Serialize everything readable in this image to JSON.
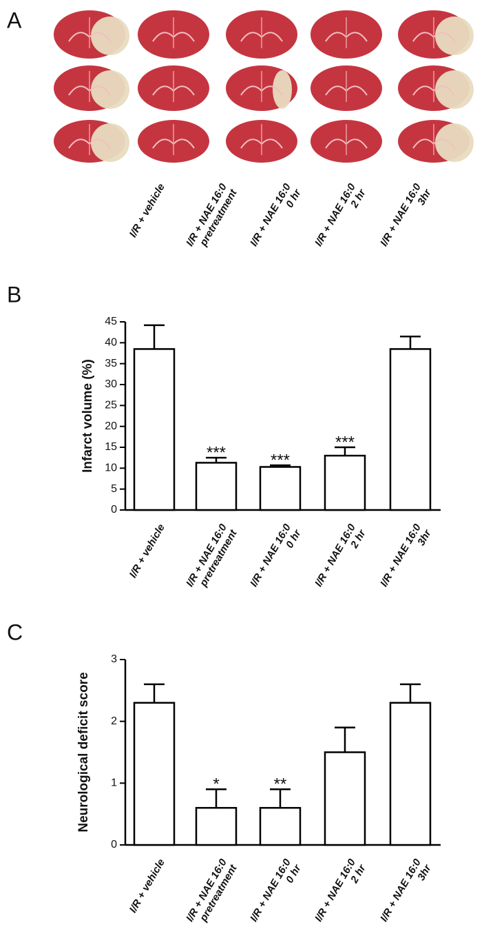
{
  "panel_a": {
    "label": "A",
    "categories": [
      [
        "I/R + vehicle"
      ],
      [
        "I/R + NAE 16:0",
        "pretreatment"
      ],
      [
        "I/R + NAE 16:0",
        "0 hr"
      ],
      [
        "I/R + NAE 16:0",
        "2 hr"
      ],
      [
        "I/R + NAE 16:0",
        "3hr"
      ]
    ]
  },
  "chart_data": [
    {
      "type": "bar",
      "panel_label": "B",
      "y_label": "Infarct volume  (%)",
      "categories": [
        [
          "I/R + vehicle"
        ],
        [
          "I/R + NAE 16:0",
          "pretreatment"
        ],
        [
          "I/R + NAE 16:0",
          "0 hr"
        ],
        [
          "I/R + NAE 16:0",
          "2 hr"
        ],
        [
          "I/R + NAE 16:0",
          "3hr"
        ]
      ],
      "values": [
        38.5,
        11.3,
        10.3,
        13,
        38.5
      ],
      "errors": [
        5.7,
        1.2,
        0.4,
        2,
        3
      ],
      "annotations": [
        {
          "index": 1,
          "text": "***"
        },
        {
          "index": 2,
          "text": "***"
        },
        {
          "index": 3,
          "text": "***"
        }
      ],
      "color": "#ffffff",
      "ylim": [
        0,
        45
      ],
      "yticks": [
        0,
        5,
        10,
        15,
        20,
        25,
        30,
        35,
        40,
        45
      ]
    },
    {
      "type": "bar",
      "panel_label": "C",
      "y_label": "Neurological deficit score",
      "categories": [
        [
          "I/R + vehicle"
        ],
        [
          "I/R + NAE 16:0",
          "pretreatment"
        ],
        [
          "I/R + NAE 16:0",
          "0 hr"
        ],
        [
          "I/R + NAE 16:0",
          "2 hr"
        ],
        [
          "I/R + NAE 16:0",
          "3hr"
        ]
      ],
      "values": [
        2.3,
        0.6,
        0.6,
        1.5,
        2.3
      ],
      "errors": [
        0.3,
        0.3,
        0.3,
        0.4,
        0.3
      ],
      "annotations": [
        {
          "index": 1,
          "text": "*"
        },
        {
          "index": 2,
          "text": "**"
        }
      ],
      "color": "#ffffff",
      "ylim": [
        0,
        3
      ],
      "yticks": [
        0,
        1,
        2,
        3
      ]
    }
  ]
}
